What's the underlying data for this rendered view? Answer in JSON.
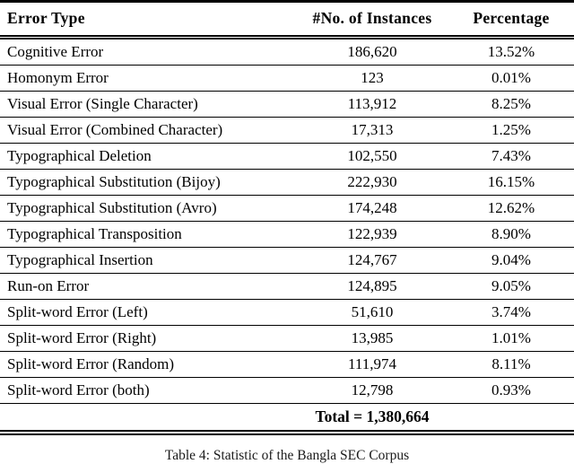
{
  "table": {
    "columns": [
      "Error Type",
      "#No. of Instances",
      "Percentage"
    ],
    "rows": [
      {
        "type": "Cognitive Error",
        "instances": "186,620",
        "percentage": "13.52%"
      },
      {
        "type": "Homonym Error",
        "instances": "123",
        "percentage": "0.01%"
      },
      {
        "type": "Visual Error (Single Character)",
        "instances": "113,912",
        "percentage": "8.25%"
      },
      {
        "type": "Visual Error (Combined Character)",
        "instances": "17,313",
        "percentage": "1.25%"
      },
      {
        "type": "Typographical Deletion",
        "instances": "102,550",
        "percentage": "7.43%"
      },
      {
        "type": "Typographical Substitution (Bijoy)",
        "instances": "222,930",
        "percentage": "16.15%"
      },
      {
        "type": "Typographical Substitution (Avro)",
        "instances": "174,248",
        "percentage": "12.62%"
      },
      {
        "type": "Typographical Transposition",
        "instances": "122,939",
        "percentage": "8.90%"
      },
      {
        "type": "Typographical Insertion",
        "instances": "124,767",
        "percentage": "9.04%"
      },
      {
        "type": "Run-on Error",
        "instances": "124,895",
        "percentage": "9.05%"
      },
      {
        "type": "Split-word Error (Left)",
        "instances": "51,610",
        "percentage": "3.74%"
      },
      {
        "type": "Split-word Error (Right)",
        "instances": "13,985",
        "percentage": "1.01%"
      },
      {
        "type": "Split-word Error (Random)",
        "instances": "111,974",
        "percentage": "8.11%"
      },
      {
        "type": "Split-word Error (both)",
        "instances": "12,798",
        "percentage": "0.93%"
      }
    ],
    "total_label": "Total = 1,380,664"
  },
  "caption": "Table 4: Statistic of the Bangla SEC Corpus",
  "colors": {
    "text": "#000000",
    "rule": "#000000",
    "background": "#ffffff"
  }
}
